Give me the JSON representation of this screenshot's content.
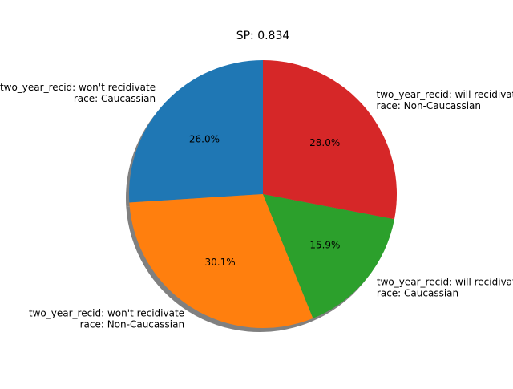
{
  "chart_data": {
    "type": "pie",
    "title": "SP: 0.834",
    "slices": [
      {
        "label_lines": [
          "two_year_recid: won't recidivate",
          "race: Caucassian"
        ],
        "value": 26.0,
        "pct_label": "26.0%",
        "color": "#1f77b4"
      },
      {
        "label_lines": [
          "two_year_recid: won't recidivate",
          "race: Non-Caucassian"
        ],
        "value": 30.1,
        "pct_label": "30.1%",
        "color": "#ff7f0e"
      },
      {
        "label_lines": [
          "two_year_recid: will recidivate",
          "race: Caucassian"
        ],
        "value": 15.9,
        "pct_label": "15.9%",
        "color": "#2ca02c"
      },
      {
        "label_lines": [
          "two_year_recid: will recidivate",
          "race: Non-Caucassian"
        ],
        "value": 28.0,
        "pct_label": "28.0%",
        "color": "#d62728"
      }
    ],
    "start_angle": 90,
    "direction": "counterclockwise",
    "shadow": true,
    "shadow_color": "#808080"
  }
}
